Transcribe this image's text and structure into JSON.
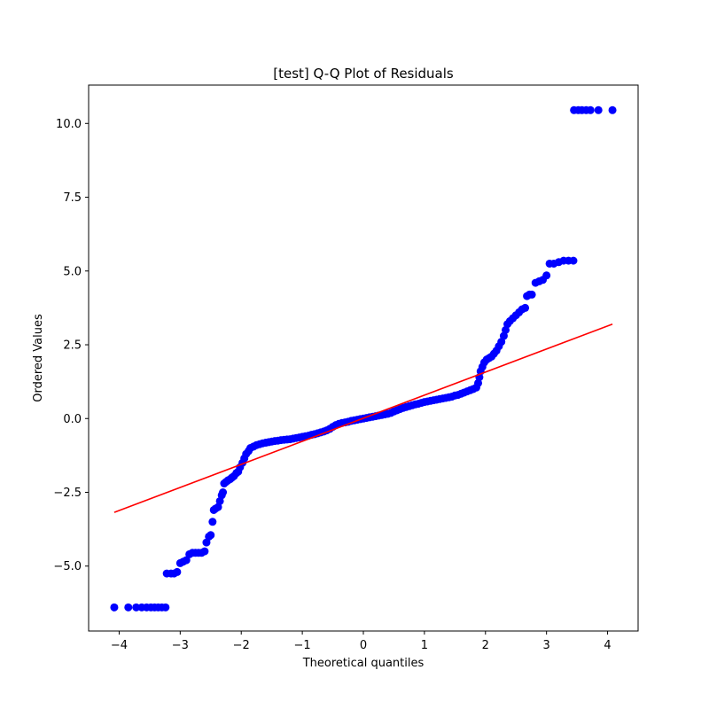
{
  "chart_data": {
    "type": "scatter",
    "title": "[test] Q-Q Plot of Residuals",
    "xlabel": "Theoretical quantiles",
    "ylabel": "Ordered Values",
    "xlim": [
      -4.5,
      4.5
    ],
    "ylim": [
      -7.2,
      11.3
    ],
    "x_ticks": [
      -4,
      -3,
      -2,
      -1,
      0,
      1,
      2,
      3,
      4
    ],
    "x_tick_labels": [
      "−4",
      "−3",
      "−2",
      "−1",
      "0",
      "1",
      "2",
      "3",
      "4"
    ],
    "y_ticks": [
      -5.0,
      -2.5,
      0.0,
      2.5,
      5.0,
      7.5,
      10.0
    ],
    "y_tick_labels": [
      "−5.0",
      "−2.5",
      "0.0",
      "2.5",
      "5.0",
      "7.5",
      "10.0"
    ],
    "grid": false,
    "series": [
      {
        "marker_color": "#0000ff",
        "kind": "markers",
        "points": [
          [
            -4.08,
            -6.4
          ],
          [
            -3.85,
            -6.4
          ],
          [
            -3.72,
            -6.4
          ],
          [
            -3.63,
            -6.4
          ],
          [
            -3.55,
            -6.4
          ],
          [
            -3.48,
            -6.4
          ],
          [
            -3.42,
            -6.4
          ],
          [
            -3.36,
            -6.4
          ],
          [
            -3.3,
            -6.4
          ],
          [
            -3.24,
            -6.4
          ],
          [
            -3.22,
            -5.25
          ],
          [
            -3.15,
            -5.25
          ],
          [
            -3.1,
            -5.25
          ],
          [
            -3.05,
            -5.2
          ],
          [
            -3.0,
            -4.9
          ],
          [
            -2.95,
            -4.85
          ],
          [
            -2.9,
            -4.8
          ],
          [
            -2.85,
            -4.6
          ],
          [
            -2.8,
            -4.55
          ],
          [
            -2.75,
            -4.55
          ],
          [
            -2.7,
            -4.55
          ],
          [
            -2.65,
            -4.55
          ],
          [
            -2.6,
            -4.5
          ],
          [
            -2.57,
            -4.2
          ],
          [
            -2.53,
            -4.0
          ],
          [
            -2.5,
            -3.95
          ],
          [
            -2.47,
            -3.5
          ],
          [
            -2.45,
            -3.1
          ],
          [
            -2.42,
            -3.05
          ],
          [
            -2.38,
            -3.0
          ],
          [
            -2.35,
            -2.8
          ],
          [
            -2.32,
            -2.6
          ],
          [
            -2.3,
            -2.5
          ],
          [
            -2.28,
            -2.2
          ],
          [
            -2.25,
            -2.15
          ],
          [
            -2.22,
            -2.1
          ],
          [
            -2.18,
            -2.05
          ],
          [
            -2.15,
            -2.0
          ],
          [
            -2.12,
            -1.95
          ],
          [
            -2.08,
            -1.85
          ],
          [
            -2.05,
            -1.8
          ],
          [
            -2.02,
            -1.65
          ],
          [
            -1.98,
            -1.5
          ],
          [
            -1.95,
            -1.35
          ],
          [
            -1.92,
            -1.2
          ],
          [
            -1.88,
            -1.1
          ],
          [
            -1.85,
            -1.0
          ],
          [
            -1.8,
            -0.95
          ],
          [
            -1.75,
            -0.9
          ],
          [
            -1.7,
            -0.87
          ],
          [
            -1.65,
            -0.84
          ],
          [
            -1.6,
            -0.82
          ],
          [
            -1.55,
            -0.8
          ],
          [
            -1.5,
            -0.78
          ],
          [
            -1.45,
            -0.76
          ],
          [
            -1.4,
            -0.75
          ],
          [
            -1.35,
            -0.73
          ],
          [
            -1.3,
            -0.72
          ],
          [
            -1.25,
            -0.71
          ],
          [
            -1.2,
            -0.7
          ],
          [
            -1.15,
            -0.68
          ],
          [
            -1.1,
            -0.66
          ],
          [
            -1.05,
            -0.64
          ],
          [
            -1.0,
            -0.62
          ],
          [
            -0.95,
            -0.6
          ],
          [
            -0.9,
            -0.58
          ],
          [
            -0.85,
            -0.55
          ],
          [
            -0.8,
            -0.53
          ],
          [
            -0.75,
            -0.5
          ],
          [
            -0.7,
            -0.47
          ],
          [
            -0.65,
            -0.44
          ],
          [
            -0.6,
            -0.4
          ],
          [
            -0.55,
            -0.35
          ],
          [
            -0.5,
            -0.28
          ],
          [
            -0.45,
            -0.22
          ],
          [
            -0.4,
            -0.18
          ],
          [
            -0.35,
            -0.15
          ],
          [
            -0.3,
            -0.13
          ],
          [
            -0.25,
            -0.11
          ],
          [
            -0.2,
            -0.08
          ],
          [
            -0.15,
            -0.06
          ],
          [
            -0.1,
            -0.04
          ],
          [
            -0.05,
            -0.02
          ],
          [
            0.0,
            0.0
          ],
          [
            0.05,
            0.02
          ],
          [
            0.1,
            0.04
          ],
          [
            0.15,
            0.06
          ],
          [
            0.2,
            0.08
          ],
          [
            0.25,
            0.1
          ],
          [
            0.3,
            0.12
          ],
          [
            0.35,
            0.14
          ],
          [
            0.4,
            0.16
          ],
          [
            0.45,
            0.19
          ],
          [
            0.5,
            0.24
          ],
          [
            0.55,
            0.28
          ],
          [
            0.6,
            0.32
          ],
          [
            0.65,
            0.36
          ],
          [
            0.7,
            0.39
          ],
          [
            0.75,
            0.42
          ],
          [
            0.8,
            0.45
          ],
          [
            0.85,
            0.48
          ],
          [
            0.9,
            0.5
          ],
          [
            0.95,
            0.53
          ],
          [
            1.0,
            0.56
          ],
          [
            1.05,
            0.58
          ],
          [
            1.1,
            0.6
          ],
          [
            1.15,
            0.62
          ],
          [
            1.2,
            0.64
          ],
          [
            1.25,
            0.66
          ],
          [
            1.3,
            0.68
          ],
          [
            1.35,
            0.7
          ],
          [
            1.4,
            0.72
          ],
          [
            1.45,
            0.74
          ],
          [
            1.5,
            0.78
          ],
          [
            1.55,
            0.8
          ],
          [
            1.6,
            0.84
          ],
          [
            1.65,
            0.88
          ],
          [
            1.7,
            0.92
          ],
          [
            1.75,
            0.96
          ],
          [
            1.8,
            1.0
          ],
          [
            1.85,
            1.05
          ],
          [
            1.88,
            1.2
          ],
          [
            1.9,
            1.4
          ],
          [
            1.92,
            1.6
          ],
          [
            1.95,
            1.75
          ],
          [
            1.98,
            1.9
          ],
          [
            2.02,
            2.0
          ],
          [
            2.06,
            2.05
          ],
          [
            2.1,
            2.1
          ],
          [
            2.14,
            2.2
          ],
          [
            2.18,
            2.3
          ],
          [
            2.22,
            2.45
          ],
          [
            2.26,
            2.6
          ],
          [
            2.3,
            2.8
          ],
          [
            2.33,
            3.0
          ],
          [
            2.36,
            3.2
          ],
          [
            2.4,
            3.3
          ],
          [
            2.45,
            3.4
          ],
          [
            2.5,
            3.5
          ],
          [
            2.55,
            3.6
          ],
          [
            2.6,
            3.7
          ],
          [
            2.65,
            3.75
          ],
          [
            2.68,
            4.15
          ],
          [
            2.72,
            4.2
          ],
          [
            2.76,
            4.2
          ],
          [
            2.82,
            4.6
          ],
          [
            2.88,
            4.65
          ],
          [
            2.94,
            4.7
          ],
          [
            3.0,
            4.85
          ],
          [
            3.05,
            5.25
          ],
          [
            3.12,
            5.25
          ],
          [
            3.2,
            5.3
          ],
          [
            3.28,
            5.35
          ],
          [
            3.36,
            5.35
          ],
          [
            3.44,
            5.35
          ],
          [
            3.45,
            10.45
          ],
          [
            3.52,
            10.45
          ],
          [
            3.58,
            10.45
          ],
          [
            3.65,
            10.45
          ],
          [
            3.72,
            10.45
          ],
          [
            3.85,
            10.45
          ],
          [
            4.08,
            10.45
          ]
        ]
      },
      {
        "line_color": "#ff0000",
        "kind": "line",
        "x": [
          -4.08,
          4.08
        ],
        "y": [
          -3.18,
          3.2
        ]
      }
    ]
  }
}
